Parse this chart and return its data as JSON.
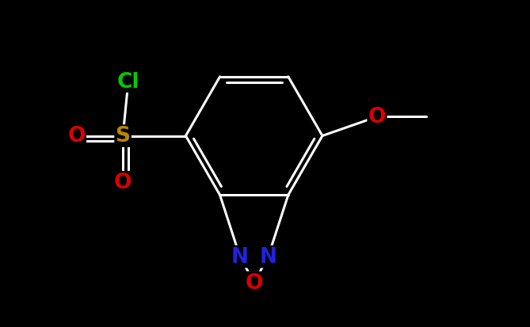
{
  "background_color": "#000000",
  "bond_color": "#ffffff",
  "lw": 2.2,
  "label_fontsize": 20,
  "figsize": [
    6.69,
    4.14
  ],
  "dpi": 100,
  "xlim": [
    0.0,
    9.0
  ],
  "ylim": [
    0.5,
    8.5
  ],
  "colors": {
    "Cl": "#00cc00",
    "S": "#bb8800",
    "O": "#dd0000",
    "N": "#2222dd",
    "C": "#ffffff"
  }
}
